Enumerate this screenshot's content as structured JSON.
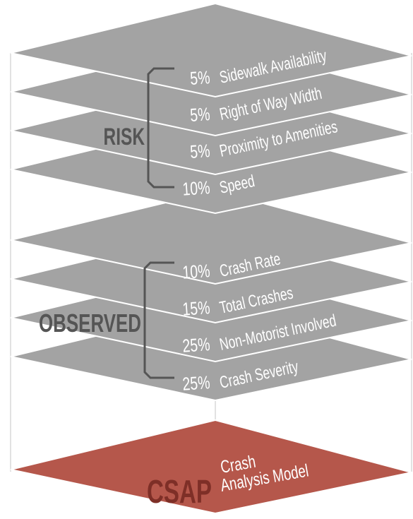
{
  "groups": [
    {
      "title": "RISK",
      "items": [
        {
          "percent": "5%",
          "label": "Sidewalk Availability"
        },
        {
          "percent": "5%",
          "label": "Right of Way Width"
        },
        {
          "percent": "5%",
          "label": "Proximity to Amenities"
        },
        {
          "percent": "10%",
          "label": "Speed"
        }
      ]
    },
    {
      "title": "OBSERVED",
      "items": [
        {
          "percent": "10%",
          "label": "Crash Rate"
        },
        {
          "percent": "15%",
          "label": "Total Crashes"
        },
        {
          "percent": "25%",
          "label": "Non-Motorist Involved"
        },
        {
          "percent": "25%",
          "label": "Crash Severity"
        }
      ]
    }
  ],
  "model": {
    "acronym": "CSAP",
    "name_lines": [
      "Crash",
      "Analysis Model"
    ]
  }
}
